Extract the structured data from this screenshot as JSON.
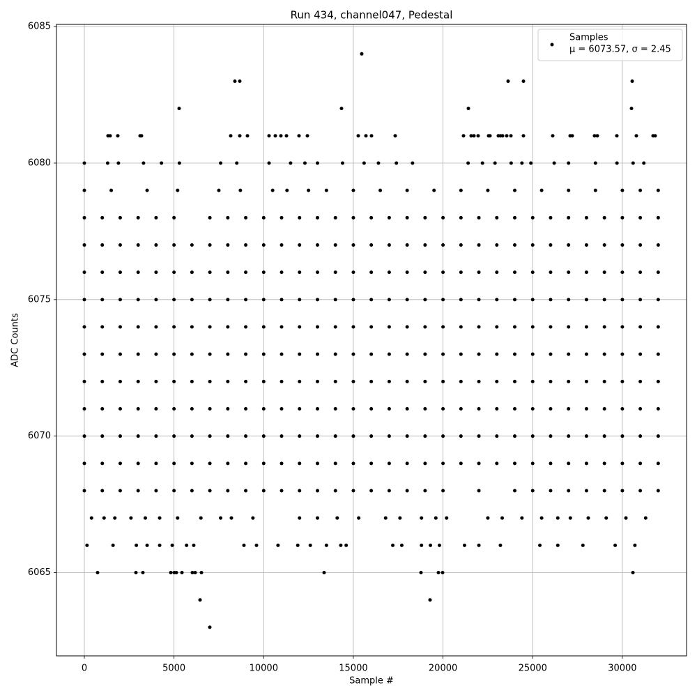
{
  "chart_data": {
    "type": "scatter",
    "title": "Run 434, channel047, Pedestal",
    "x_label": "Sample #",
    "y_label": "ADC Counts",
    "xlim": [
      -1555,
      33580
    ],
    "ylim": [
      6061.95,
      6085.08
    ],
    "xticks": [
      0,
      5000,
      10000,
      15000,
      20000,
      25000,
      30000
    ],
    "yticks": [
      6065,
      6070,
      6075,
      6080,
      6085
    ],
    "grid": true,
    "legend_position": "upper right",
    "legend_note": "μ = 6073.57, σ = 2.45",
    "series": [
      {
        "name": "Samples",
        "color": "#000000",
        "x": [
          0,
          1000,
          2000,
          3000,
          4000,
          5000,
          6000,
          7000,
          8000,
          9000,
          10000,
          11000,
          12000,
          13000,
          14000,
          15000,
          16000,
          17000,
          18000,
          19000,
          20000,
          21000,
          22000,
          23000,
          24000,
          25000,
          26000,
          27000,
          28000,
          29000,
          30000,
          31000,
          32000,
          0,
          1000,
          2000,
          3000,
          4000,
          5000,
          6000,
          7000,
          8000,
          9000,
          10000,
          11000,
          12000,
          13000,
          14000,
          15000,
          16000,
          17000,
          18000,
          19000,
          20000,
          21000,
          22000,
          23000,
          24000,
          25000,
          26000,
          27000,
          28000,
          29000,
          30000,
          31000,
          32000,
          0,
          1000,
          2000,
          3000,
          4000,
          5000,
          6000,
          7000,
          8000,
          9000,
          10000,
          11000,
          12000,
          13000,
          14000,
          15000,
          16000,
          17000,
          18000,
          19000,
          20000,
          21000,
          22000,
          23000,
          24000,
          25000,
          26000,
          27000,
          28000,
          29000,
          30000,
          31000,
          32000,
          0,
          1000,
          2000,
          3000,
          4000,
          5000,
          6000,
          7000,
          8000,
          9000,
          10000,
          11000,
          12000,
          13000,
          14000,
          15000,
          16000,
          17000,
          18000,
          19000,
          20000,
          21000,
          22000,
          23000,
          24000,
          25000,
          26000,
          27000,
          28000,
          29000,
          30000,
          31000,
          32000,
          0,
          1000,
          2000,
          3000,
          4000,
          5000,
          6000,
          7000,
          8000,
          9000,
          10000,
          11000,
          12000,
          13000,
          14000,
          15000,
          16000,
          17000,
          18000,
          19000,
          20000,
          21000,
          22000,
          23000,
          24000,
          25000,
          26000,
          27000,
          28000,
          29000,
          30000,
          31000,
          32000,
          0,
          1000,
          2000,
          3000,
          4000,
          5000,
          6000,
          7000,
          8000,
          9000,
          10000,
          11000,
          12000,
          13000,
          14000,
          15000,
          16000,
          17000,
          18000,
          19000,
          20000,
          21000,
          22000,
          23000,
          24000,
          25000,
          26000,
          27000,
          28000,
          29000,
          30000,
          31000,
          32000,
          0,
          1000,
          2000,
          3000,
          4000,
          5000,
          6000,
          7000,
          8000,
          9000,
          10000,
          11000,
          12000,
          13000,
          14000,
          15000,
          16000,
          17000,
          18000,
          19000,
          20000,
          21000,
          22000,
          23000,
          24000,
          25000,
          26000,
          27000,
          28000,
          29000,
          30000,
          31000,
          32000,
          0,
          1000,
          2000,
          3000,
          4000,
          5000,
          6000,
          7000,
          8000,
          9000,
          10000,
          11000,
          12000,
          13000,
          14000,
          15000,
          16000,
          17000,
          18000,
          19000,
          20000,
          21000,
          22000,
          23000,
          24000,
          25000,
          26000,
          27000,
          28000,
          29000,
          30000,
          31000,
          32000,
          0,
          1000,
          2000,
          3000,
          4000,
          5000,
          6000,
          7000,
          8000,
          9000,
          10000,
          11000,
          12000,
          13000,
          14000,
          15000,
          16000,
          17000,
          18000,
          19000,
          20000,
          21000,
          22000,
          23000,
          24000,
          25000,
          26000,
          27000,
          28000,
          29000,
          30000,
          31000,
          32000,
          0,
          1000,
          2000,
          3000,
          4000,
          5000,
          7000,
          8000,
          9000,
          10000,
          11000,
          12000,
          13000,
          14000,
          15000,
          16000,
          17000,
          18000,
          19000,
          20000,
          21000,
          22000,
          23000,
          24000,
          25000,
          26000,
          27000,
          28000,
          29000,
          30000,
          31000,
          32000,
          0,
          1000,
          2000,
          3000,
          4000,
          5000,
          6000,
          7000,
          8000,
          9000,
          10000,
          11000,
          12000,
          13000,
          14000,
          15000,
          16000,
          17000,
          18000,
          19000,
          20000,
          22000,
          24000,
          25000,
          26000,
          27000,
          28000,
          29000,
          30000,
          31000,
          32000,
          0,
          1500,
          3500,
          5200,
          7500,
          8700,
          10500,
          11300,
          12500,
          13500,
          15000,
          16500,
          18000,
          19500,
          21000,
          22500,
          24000,
          25500,
          27000,
          28500,
          30000,
          31000,
          32000,
          0,
          1300,
          1900,
          3300,
          4300,
          5300,
          7600,
          8500,
          10300,
          11500,
          12300,
          13000,
          14400,
          15600,
          16400,
          17400,
          18300,
          21400,
          22200,
          22900,
          23800,
          24400,
          24900,
          26200,
          27000,
          28500,
          29700,
          30600,
          31200,
          400,
          1100,
          1700,
          2600,
          3400,
          4200,
          5200,
          6500,
          7600,
          8200,
          9400,
          12000,
          13000,
          14100,
          15300,
          16800,
          17600,
          18800,
          19600,
          20200,
          22500,
          23300,
          24400,
          25500,
          26400,
          27100,
          28100,
          29100,
          30200,
          31300,
          150,
          1600,
          2900,
          3500,
          4200,
          4900,
          5700,
          6100,
          8900,
          9600,
          10800,
          11900,
          12600,
          13500,
          14300,
          14600,
          17200,
          17700,
          18800,
          19300,
          19800,
          21200,
          22000,
          23200,
          25400,
          26400,
          27800,
          29600,
          30700,
          738,
          2876,
          3265,
          4819,
          5014,
          5131,
          5442,
          6024,
          6180,
          6530,
          13370,
          18772,
          19744,
          19977,
          30590,
          6452,
          19277,
          6996,
          1321,
          1438,
          1866,
          3109,
          3187,
          8162,
          8667,
          9094,
          10299,
          10649,
          10960,
          11271,
          11970,
          12437,
          15274,
          15702,
          16013,
          17334,
          21143,
          21570,
          21726,
          21959,
          22542,
          22620,
          23086,
          23203,
          23319,
          23552,
          23786,
          24485,
          26117,
          27089,
          27206,
          28449,
          28605,
          29693,
          30781,
          31714,
          31830,
          5286,
          14341,
          21415,
          30510,
          8395,
          8667,
          23630,
          24485,
          30550,
          15468
        ],
        "values": [
          6077,
          6077,
          6077,
          6077,
          6077,
          6077,
          6077,
          6077,
          6077,
          6077,
          6077,
          6077,
          6077,
          6077,
          6077,
          6077,
          6077,
          6077,
          6077,
          6077,
          6077,
          6077,
          6077,
          6077,
          6077,
          6077,
          6077,
          6077,
          6077,
          6077,
          6077,
          6077,
          6077,
          6076,
          6076,
          6076,
          6076,
          6076,
          6076,
          6076,
          6076,
          6076,
          6076,
          6076,
          6076,
          6076,
          6076,
          6076,
          6076,
          6076,
          6076,
          6076,
          6076,
          6076,
          6076,
          6076,
          6076,
          6076,
          6076,
          6076,
          6076,
          6076,
          6076,
          6076,
          6076,
          6076,
          6075,
          6075,
          6075,
          6075,
          6075,
          6075,
          6075,
          6075,
          6075,
          6075,
          6075,
          6075,
          6075,
          6075,
          6075,
          6075,
          6075,
          6075,
          6075,
          6075,
          6075,
          6075,
          6075,
          6075,
          6075,
          6075,
          6075,
          6075,
          6075,
          6075,
          6075,
          6075,
          6075,
          6074,
          6074,
          6074,
          6074,
          6074,
          6074,
          6074,
          6074,
          6074,
          6074,
          6074,
          6074,
          6074,
          6074,
          6074,
          6074,
          6074,
          6074,
          6074,
          6074,
          6074,
          6074,
          6074,
          6074,
          6074,
          6074,
          6074,
          6074,
          6074,
          6074,
          6074,
          6074,
          6074,
          6073,
          6073,
          6073,
          6073,
          6073,
          6073,
          6073,
          6073,
          6073,
          6073,
          6073,
          6073,
          6073,
          6073,
          6073,
          6073,
          6073,
          6073,
          6073,
          6073,
          6073,
          6073,
          6073,
          6073,
          6073,
          6073,
          6073,
          6073,
          6073,
          6073,
          6073,
          6073,
          6073,
          6072,
          6072,
          6072,
          6072,
          6072,
          6072,
          6072,
          6072,
          6072,
          6072,
          6072,
          6072,
          6072,
          6072,
          6072,
          6072,
          6072,
          6072,
          6072,
          6072,
          6072,
          6072,
          6072,
          6072,
          6072,
          6072,
          6072,
          6072,
          6072,
          6072,
          6072,
          6072,
          6072,
          6071,
          6071,
          6071,
          6071,
          6071,
          6071,
          6071,
          6071,
          6071,
          6071,
          6071,
          6071,
          6071,
          6071,
          6071,
          6071,
          6071,
          6071,
          6071,
          6071,
          6071,
          6071,
          6071,
          6071,
          6071,
          6071,
          6071,
          6071,
          6071,
          6071,
          6071,
          6071,
          6071,
          6070,
          6070,
          6070,
          6070,
          6070,
          6070,
          6070,
          6070,
          6070,
          6070,
          6070,
          6070,
          6070,
          6070,
          6070,
          6070,
          6070,
          6070,
          6070,
          6070,
          6070,
          6070,
          6070,
          6070,
          6070,
          6070,
          6070,
          6070,
          6070,
          6070,
          6070,
          6070,
          6070,
          6069,
          6069,
          6069,
          6069,
          6069,
          6069,
          6069,
          6069,
          6069,
          6069,
          6069,
          6069,
          6069,
          6069,
          6069,
          6069,
          6069,
          6069,
          6069,
          6069,
          6069,
          6069,
          6069,
          6069,
          6069,
          6069,
          6069,
          6069,
          6069,
          6069,
          6069,
          6069,
          6069,
          6078,
          6078,
          6078,
          6078,
          6078,
          6078,
          6078,
          6078,
          6078,
          6078,
          6078,
          6078,
          6078,
          6078,
          6078,
          6078,
          6078,
          6078,
          6078,
          6078,
          6078,
          6078,
          6078,
          6078,
          6078,
          6078,
          6078,
          6078,
          6078,
          6078,
          6078,
          6078,
          6068,
          6068,
          6068,
          6068,
          6068,
          6068,
          6068,
          6068,
          6068,
          6068,
          6068,
          6068,
          6068,
          6068,
          6068,
          6068,
          6068,
          6068,
          6068,
          6068,
          6068,
          6068,
          6068,
          6068,
          6068,
          6068,
          6068,
          6068,
          6068,
          6068,
          6068,
          6079,
          6079,
          6079,
          6079,
          6079,
          6079,
          6079,
          6079,
          6079,
          6079,
          6079,
          6079,
          6079,
          6079,
          6079,
          6079,
          6079,
          6079,
          6079,
          6079,
          6079,
          6079,
          6079,
          6080,
          6080,
          6080,
          6080,
          6080,
          6080,
          6080,
          6080,
          6080,
          6080,
          6080,
          6080,
          6080,
          6080,
          6080,
          6080,
          6080,
          6080,
          6080,
          6080,
          6080,
          6080,
          6080,
          6080,
          6080,
          6080,
          6080,
          6080,
          6080,
          6067,
          6067,
          6067,
          6067,
          6067,
          6067,
          6067,
          6067,
          6067,
          6067,
          6067,
          6067,
          6067,
          6067,
          6067,
          6067,
          6067,
          6067,
          6067,
          6067,
          6067,
          6067,
          6067,
          6067,
          6067,
          6067,
          6067,
          6067,
          6067,
          6067,
          6066,
          6066,
          6066,
          6066,
          6066,
          6066,
          6066,
          6066,
          6066,
          6066,
          6066,
          6066,
          6066,
          6066,
          6066,
          6066,
          6066,
          6066,
          6066,
          6066,
          6066,
          6066,
          6066,
          6066,
          6066,
          6066,
          6066,
          6066,
          6066,
          6065,
          6065,
          6065,
          6065,
          6065,
          6065,
          6065,
          6065,
          6065,
          6065,
          6065,
          6065,
          6065,
          6065,
          6065,
          6064,
          6064,
          6063,
          6081,
          6081,
          6081,
          6081,
          6081,
          6081,
          6081,
          6081,
          6081,
          6081,
          6081,
          6081,
          6081,
          6081,
          6081,
          6081,
          6081,
          6081,
          6081,
          6081,
          6081,
          6081,
          6081,
          6081,
          6081,
          6081,
          6081,
          6081,
          6081,
          6081,
          6081,
          6081,
          6081,
          6081,
          6081,
          6081,
          6081,
          6081,
          6081,
          6082,
          6082,
          6082,
          6082,
          6083,
          6083,
          6083,
          6083,
          6083,
          6084
        ]
      }
    ]
  }
}
